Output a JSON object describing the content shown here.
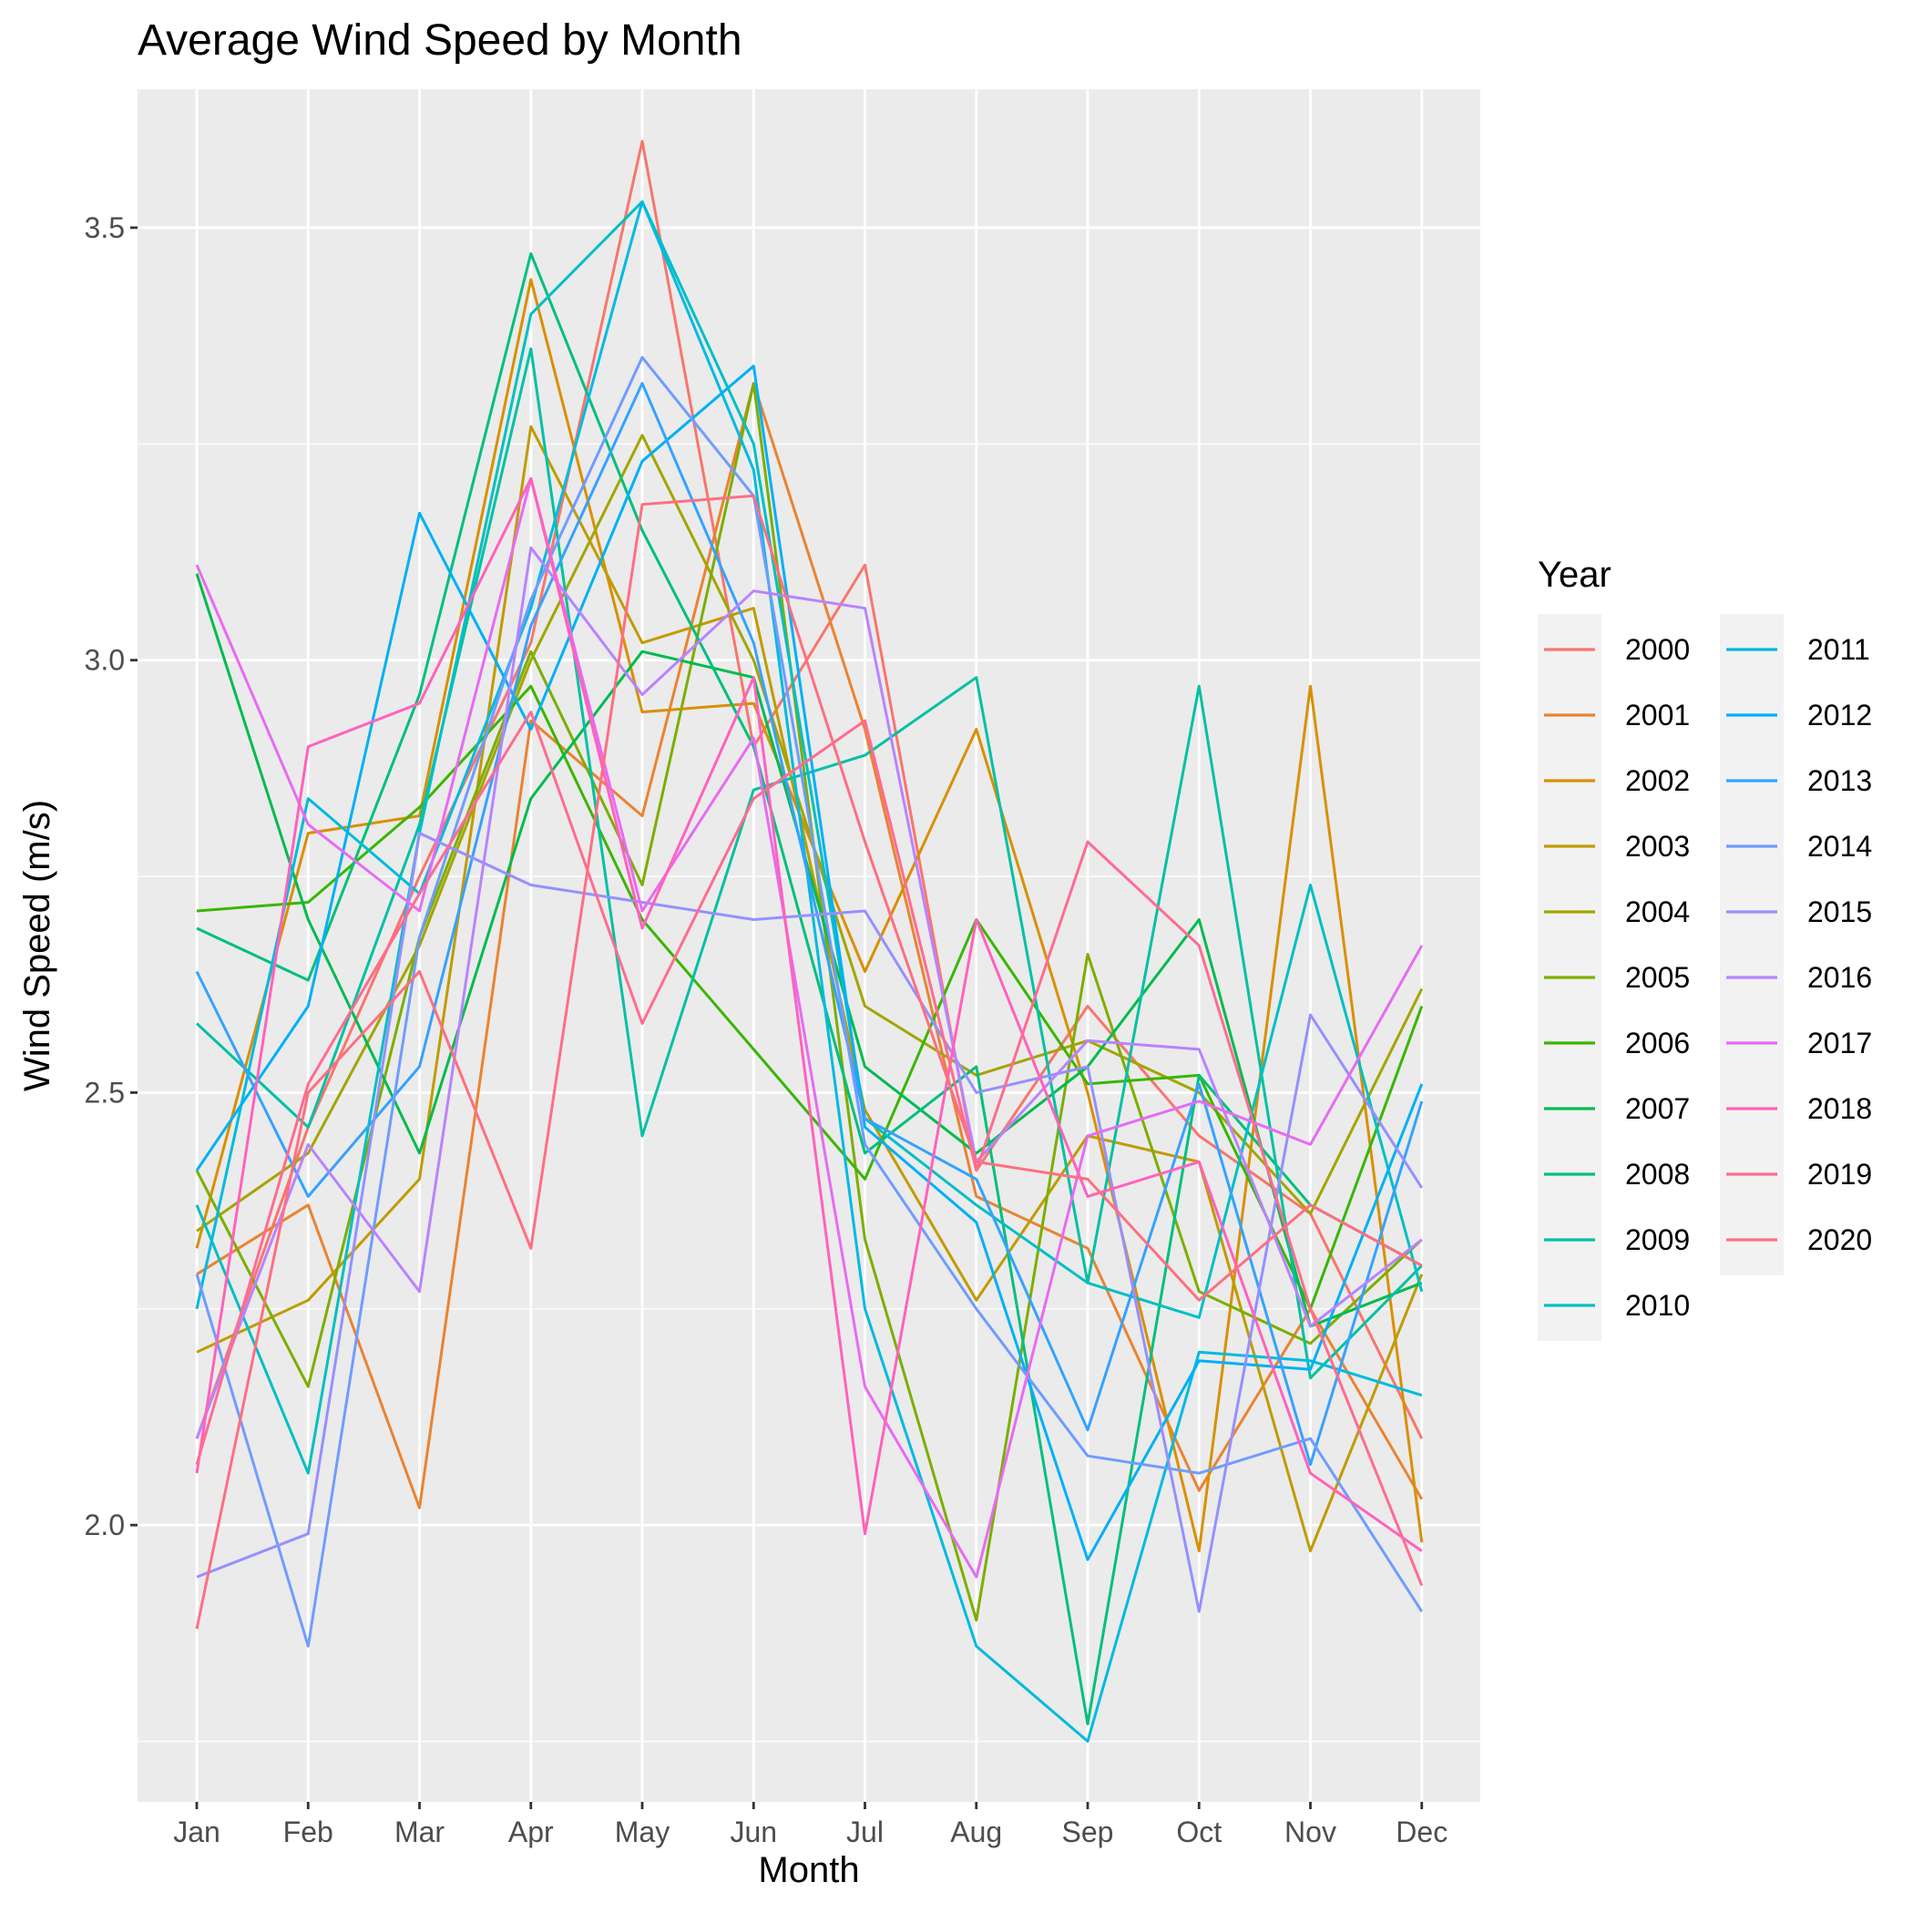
{
  "chart_data": {
    "type": "line",
    "title": "Average Wind Speed by Month",
    "xlabel": "Month",
    "ylabel": "Wind Speed (m/s)",
    "categories": [
      "Jan",
      "Feb",
      "Mar",
      "Apr",
      "May",
      "Jun",
      "Jul",
      "Aug",
      "Sep",
      "Oct",
      "Nov",
      "Dec"
    ],
    "yticks": [
      "2.0",
      "2.5",
      "3.0",
      "3.5"
    ],
    "ylim": [
      1.68,
      3.66
    ],
    "grid": true,
    "legend": {
      "title": "Year",
      "position": "right"
    },
    "series": [
      {
        "name": "2000",
        "color": "#F8766D",
        "values": [
          2.1,
          2.46,
          2.75,
          3.02,
          3.6,
          2.9,
          3.11,
          2.41,
          2.6,
          2.45,
          2.36,
          2.1
        ]
      },
      {
        "name": "2001",
        "color": "#EA8331",
        "values": [
          2.29,
          2.37,
          2.02,
          2.93,
          2.82,
          3.32,
          2.92,
          2.38,
          2.32,
          2.04,
          2.25,
          2.03
        ]
      },
      {
        "name": "2002",
        "color": "#D89000",
        "values": [
          2.32,
          2.8,
          2.82,
          3.44,
          2.94,
          2.95,
          2.64,
          2.92,
          2.5,
          1.97,
          2.97,
          1.98
        ]
      },
      {
        "name": "2003",
        "color": "#C09B00",
        "values": [
          2.2,
          2.26,
          2.4,
          3.27,
          3.02,
          3.06,
          2.48,
          2.26,
          2.45,
          2.42,
          1.97,
          2.29
        ]
      },
      {
        "name": "2004",
        "color": "#A3A500",
        "values": [
          2.34,
          2.43,
          2.67,
          3.0,
          3.26,
          3.0,
          2.6,
          2.52,
          2.56,
          2.5,
          2.36,
          2.62
        ]
      },
      {
        "name": "2005",
        "color": "#7CAE00",
        "values": [
          2.41,
          2.16,
          2.68,
          3.01,
          2.74,
          3.32,
          2.33,
          1.89,
          2.66,
          2.27,
          2.21,
          2.33
        ]
      },
      {
        "name": "2006",
        "color": "#39B600",
        "values": [
          2.71,
          2.72,
          2.83,
          2.97,
          2.7,
          2.55,
          2.4,
          2.7,
          2.51,
          2.52,
          2.25,
          2.6
        ]
      },
      {
        "name": "2007",
        "color": "#00BB4E",
        "values": [
          3.1,
          2.7,
          2.43,
          2.84,
          3.01,
          2.98,
          2.53,
          2.43,
          2.53,
          2.7,
          2.23,
          2.28
        ]
      },
      {
        "name": "2008",
        "color": "#00BF7D",
        "values": [
          2.69,
          2.63,
          2.96,
          3.47,
          3.15,
          2.9,
          2.43,
          2.53,
          1.77,
          2.52,
          2.37,
          2.3
        ]
      },
      {
        "name": "2009",
        "color": "#00C1A3",
        "values": [
          2.58,
          2.46,
          2.81,
          3.36,
          2.45,
          2.85,
          2.89,
          2.98,
          2.28,
          2.97,
          2.17,
          2.3
        ]
      },
      {
        "name": "2010",
        "color": "#00BFC4",
        "values": [
          2.37,
          2.06,
          2.8,
          3.4,
          3.53,
          3.25,
          2.47,
          2.37,
          2.28,
          2.24,
          2.74,
          2.27
        ]
      },
      {
        "name": "2011",
        "color": "#00BAE0",
        "values": [
          2.25,
          2.84,
          2.73,
          3.06,
          3.53,
          3.22,
          2.25,
          1.86,
          1.75,
          2.2,
          2.19,
          2.15
        ]
      },
      {
        "name": "2012",
        "color": "#00B0F6",
        "values": [
          2.41,
          2.6,
          3.17,
          2.92,
          3.23,
          3.34,
          2.46,
          2.35,
          1.96,
          2.19,
          2.18,
          2.51
        ]
      },
      {
        "name": "2013",
        "color": "#35A2FF",
        "values": [
          2.64,
          2.38,
          2.53,
          3.04,
          3.32,
          3.02,
          2.47,
          2.4,
          2.11,
          2.51,
          2.07,
          2.49
        ]
      },
      {
        "name": "2014",
        "color": "#6F9CFF",
        "values": [
          2.29,
          1.86,
          2.68,
          3.07,
          3.35,
          3.19,
          2.44,
          2.25,
          2.08,
          2.06,
          2.1,
          1.9
        ]
      },
      {
        "name": "2015",
        "color": "#9590FF",
        "values": [
          1.94,
          1.99,
          2.8,
          2.74,
          2.72,
          2.7,
          2.71,
          2.5,
          2.53,
          1.9,
          2.59,
          2.39
        ]
      },
      {
        "name": "2016",
        "color": "#B983FF",
        "values": [
          2.1,
          2.44,
          2.27,
          3.13,
          2.96,
          3.08,
          3.06,
          2.42,
          2.56,
          2.55,
          2.23,
          2.33
        ]
      },
      {
        "name": "2017",
        "color": "#E76BF3",
        "values": [
          3.11,
          2.81,
          2.71,
          3.21,
          2.71,
          2.91,
          2.16,
          1.94,
          2.45,
          2.49,
          2.44,
          2.67
        ]
      },
      {
        "name": "2018",
        "color": "#FF62BC",
        "values": [
          2.06,
          2.9,
          2.95,
          3.21,
          2.69,
          2.98,
          1.99,
          2.7,
          2.38,
          2.42,
          2.06,
          1.97
        ]
      },
      {
        "name": "2019",
        "color": "#FF6C91",
        "values": [
          2.07,
          2.51,
          2.73,
          2.94,
          2.58,
          2.84,
          2.93,
          2.41,
          2.79,
          2.67,
          2.25,
          1.93
        ]
      },
      {
        "name": "2020",
        "color": "#FE6F82",
        "values": [
          1.88,
          2.5,
          2.64,
          2.32,
          3.18,
          3.19,
          2.79,
          2.42,
          2.4,
          2.26,
          2.37,
          2.3
        ]
      }
    ]
  }
}
